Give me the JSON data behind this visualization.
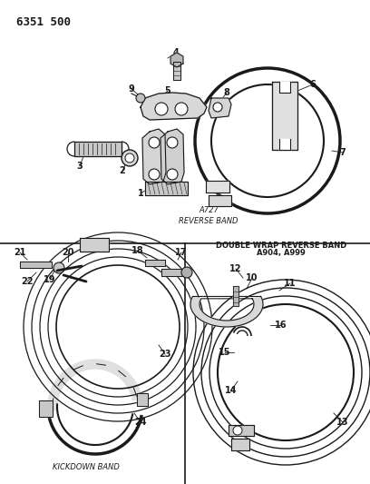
{
  "title_code": "6351 500",
  "bg_color": "#ffffff",
  "line_color": "#1a1a1a",
  "text_color": "#1a1a1a",
  "label_reverse": "A727\nREVERSE BAND",
  "label_kickdown": "KICKDOWN BAND",
  "label_double_wrap_1": "DOUBLE WRAP REVERSE BAND",
  "label_double_wrap_2": "A904, A999",
  "figsize": [
    4.08,
    5.33
  ],
  "dpi": 100
}
